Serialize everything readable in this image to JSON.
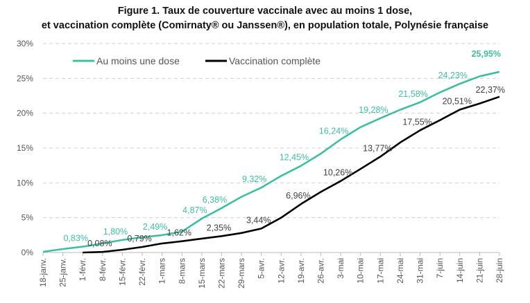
{
  "chart_data": {
    "type": "line",
    "title": "Figure 1. Taux de couverture vaccinale avec au moins 1 dose,",
    "subtitle": "et vaccination complète (Comirnaty® ou Janssen®), en population totale, Polynésie française",
    "xlabel": "",
    "ylabel": "",
    "ylim": [
      0,
      30
    ],
    "yticks": [
      "0%",
      "5%",
      "10%",
      "15%",
      "20%",
      "25%",
      "30%"
    ],
    "grid": "horizontal dashed",
    "legend": "top-left",
    "categories": [
      "18-janv.",
      "25-janv.",
      "1-févr.",
      "8-févr.",
      "15-févr.",
      "22-févr.",
      "1-mars",
      "8-mars",
      "15-mars",
      "22-mars",
      "29-mars",
      "5-avr.",
      "12-avr.",
      "19-avr.",
      "26-avr.",
      "3-mai",
      "10-mai",
      "17-mai",
      "24-mai",
      "31-mai",
      "7-juin",
      "14-juin",
      "21-juin",
      "28-juin"
    ],
    "series": [
      {
        "name": "Au moins une dose",
        "color": "#3cbf9f",
        "values": [
          0.1,
          0.5,
          0.83,
          1.3,
          1.8,
          2.2,
          2.49,
          3.0,
          4.87,
          6.38,
          8.0,
          9.32,
          11.0,
          12.45,
          14.2,
          16.24,
          18.0,
          19.28,
          20.5,
          21.58,
          23.0,
          24.23,
          25.3,
          25.95
        ],
        "labels": [
          {
            "i": 2,
            "text": "0,83%"
          },
          {
            "i": 4,
            "text": "1,80%"
          },
          {
            "i": 6,
            "text": "2,49%"
          },
          {
            "i": 8,
            "text": "4,87%"
          },
          {
            "i": 9,
            "text": "6,38%"
          },
          {
            "i": 11,
            "text": "9,32%"
          },
          {
            "i": 13,
            "text": "12,45%"
          },
          {
            "i": 15,
            "text": "16,24%"
          },
          {
            "i": 17,
            "text": "19,28%"
          },
          {
            "i": 19,
            "text": "21,58%"
          },
          {
            "i": 21,
            "text": "24,23%"
          },
          {
            "i": 23,
            "text": "25,95%",
            "bold": true
          }
        ]
      },
      {
        "name": "Vaccination complète",
        "color": "#000000",
        "values": [
          null,
          null,
          0.0,
          0.08,
          0.4,
          0.79,
          1.3,
          1.62,
          2.0,
          2.35,
          2.8,
          3.44,
          5.0,
          6.96,
          8.7,
          10.26,
          12.0,
          13.77,
          15.8,
          17.55,
          19.0,
          20.51,
          21.4,
          22.37
        ],
        "labels": [
          {
            "i": 3,
            "text": "0,08%"
          },
          {
            "i": 5,
            "text": "0,79%"
          },
          {
            "i": 7,
            "text": "1,62%"
          },
          {
            "i": 9,
            "text": "2,35%"
          },
          {
            "i": 11,
            "text": "3,44%"
          },
          {
            "i": 13,
            "text": "6,96%"
          },
          {
            "i": 15,
            "text": "10,26%"
          },
          {
            "i": 17,
            "text": "13,77%"
          },
          {
            "i": 19,
            "text": "17,55%"
          },
          {
            "i": 21,
            "text": "20,51%"
          },
          {
            "i": 23,
            "text": "22,37%"
          }
        ]
      }
    ]
  }
}
